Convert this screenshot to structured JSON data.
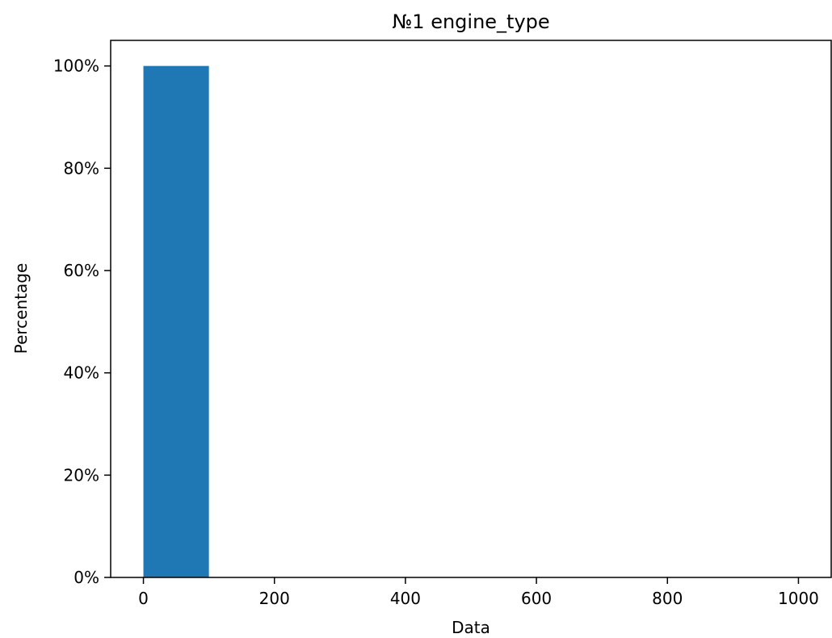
{
  "chart_data": {
    "type": "bar",
    "title": "№1 engine_type",
    "xlabel": "Data",
    "ylabel": "Percentage",
    "xlim": [
      -50,
      1050
    ],
    "ylim": [
      0,
      1.05
    ],
    "bins": [
      {
        "x0": 0,
        "x1": 100,
        "value": 1.0
      },
      {
        "x0": 100,
        "x1": 200,
        "value": 0
      },
      {
        "x0": 200,
        "x1": 300,
        "value": 0
      },
      {
        "x0": 300,
        "x1": 400,
        "value": 0
      },
      {
        "x0": 400,
        "x1": 500,
        "value": 0
      },
      {
        "x0": 500,
        "x1": 600,
        "value": 0
      },
      {
        "x0": 600,
        "x1": 700,
        "value": 0
      },
      {
        "x0": 700,
        "x1": 800,
        "value": 0
      },
      {
        "x0": 800,
        "x1": 900,
        "value": 0
      },
      {
        "x0": 900,
        "x1": 1000,
        "value": 0
      }
    ],
    "x_ticks": [
      {
        "value": 0,
        "label": "0"
      },
      {
        "value": 200,
        "label": "200"
      },
      {
        "value": 400,
        "label": "400"
      },
      {
        "value": 600,
        "label": "600"
      },
      {
        "value": 800,
        "label": "800"
      },
      {
        "value": 1000,
        "label": "1000"
      }
    ],
    "y_ticks": [
      {
        "value": 0,
        "label": "0%"
      },
      {
        "value": 0.2,
        "label": "20%"
      },
      {
        "value": 0.4,
        "label": "40%"
      },
      {
        "value": 0.6,
        "label": "60%"
      },
      {
        "value": 0.8,
        "label": "80%"
      },
      {
        "value": 1.0,
        "label": "100%"
      }
    ],
    "bar_color": "#1f77b4",
    "grid": false,
    "legend": "none"
  }
}
